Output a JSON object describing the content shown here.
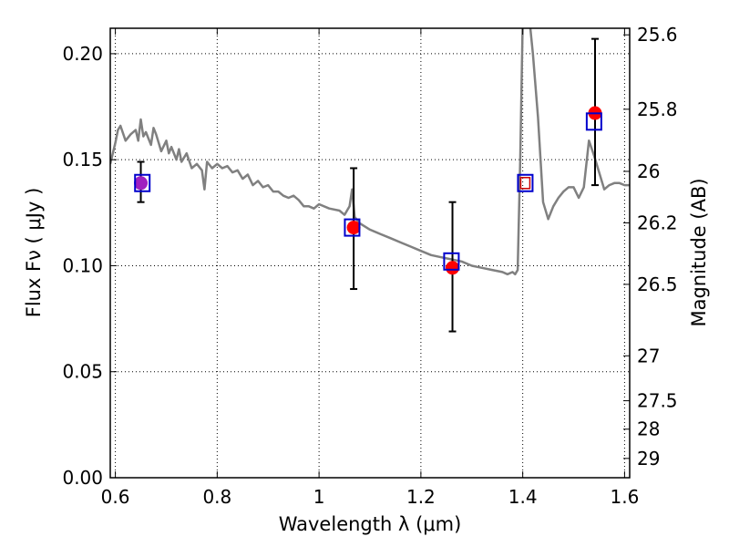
{
  "chart_data": {
    "type": "scatter",
    "title": "",
    "xlabel": "Wavelength  λ (μm)",
    "ylabel": "Flux  Fν  ( μJy )",
    "ylabel_right": "Magnitude (AB)",
    "xlim": [
      0.59,
      1.61
    ],
    "ylim": [
      0.0,
      0.212
    ],
    "grid": true,
    "x_ticks": [
      0.6,
      0.8,
      1.0,
      1.2,
      1.4,
      1.6
    ],
    "x_tick_labels": [
      "0.6",
      "0.8",
      "1",
      "1.2",
      "1.4",
      "1.6"
    ],
    "y_ticks": [
      0.0,
      0.05,
      0.1,
      0.15,
      0.2
    ],
    "y_tick_labels": [
      "0.00",
      "0.05",
      "0.10",
      "0.15",
      "0.20"
    ],
    "right_ticks": [
      {
        "label": "25.6",
        "flux": 0.2089
      },
      {
        "label": "25.8",
        "flux": 0.1738
      },
      {
        "label": "26",
        "flux": 0.1445
      },
      {
        "label": "26.2",
        "flux": 0.1202
      },
      {
        "label": "26.5",
        "flux": 0.0912
      },
      {
        "label": "27",
        "flux": 0.0575
      },
      {
        "label": "27.5",
        "flux": 0.0363
      },
      {
        "label": "28",
        "flux": 0.0229
      },
      {
        "label": "29",
        "flux": 0.0091
      }
    ],
    "series": [
      {
        "type": "line",
        "color": "#808080",
        "x": [
          0.59,
          0.6,
          0.605,
          0.61,
          0.62,
          0.63,
          0.64,
          0.645,
          0.65,
          0.655,
          0.66,
          0.67,
          0.675,
          0.68,
          0.69,
          0.7,
          0.705,
          0.71,
          0.72,
          0.725,
          0.73,
          0.74,
          0.75,
          0.76,
          0.77,
          0.775,
          0.78,
          0.79,
          0.8,
          0.81,
          0.82,
          0.83,
          0.84,
          0.85,
          0.86,
          0.87,
          0.88,
          0.89,
          0.9,
          0.91,
          0.92,
          0.93,
          0.94,
          0.95,
          0.96,
          0.97,
          0.98,
          0.99,
          1.0,
          1.02,
          1.04,
          1.05,
          1.06,
          1.065,
          1.07,
          1.08,
          1.1,
          1.12,
          1.14,
          1.16,
          1.18,
          1.2,
          1.22,
          1.24,
          1.26,
          1.28,
          1.3,
          1.32,
          1.34,
          1.36,
          1.37,
          1.38,
          1.385,
          1.39,
          1.395,
          1.4,
          1.405,
          1.41,
          1.415,
          1.42,
          1.43,
          1.44,
          1.45,
          1.46,
          1.47,
          1.48,
          1.49,
          1.5,
          1.51,
          1.52,
          1.53,
          1.54,
          1.55,
          1.56,
          1.57,
          1.58,
          1.59,
          1.6,
          1.61
        ],
        "y": [
          0.148,
          0.158,
          0.164,
          0.166,
          0.159,
          0.162,
          0.164,
          0.159,
          0.169,
          0.161,
          0.163,
          0.157,
          0.165,
          0.162,
          0.154,
          0.159,
          0.153,
          0.156,
          0.15,
          0.155,
          0.149,
          0.153,
          0.146,
          0.148,
          0.145,
          0.136,
          0.149,
          0.146,
          0.148,
          0.146,
          0.147,
          0.144,
          0.145,
          0.141,
          0.143,
          0.138,
          0.14,
          0.137,
          0.138,
          0.135,
          0.135,
          0.133,
          0.132,
          0.133,
          0.131,
          0.128,
          0.128,
          0.127,
          0.129,
          0.127,
          0.126,
          0.124,
          0.128,
          0.136,
          0.123,
          0.12,
          0.117,
          0.115,
          0.113,
          0.111,
          0.109,
          0.107,
          0.105,
          0.104,
          0.103,
          0.102,
          0.1,
          0.099,
          0.098,
          0.097,
          0.096,
          0.097,
          0.096,
          0.098,
          0.15,
          0.215,
          0.215,
          0.215,
          0.212,
          0.2,
          0.17,
          0.13,
          0.122,
          0.128,
          0.132,
          0.135,
          0.137,
          0.137,
          0.132,
          0.137,
          0.159,
          0.152,
          0.144,
          0.136,
          0.138,
          0.139,
          0.139,
          0.138,
          0.138
        ]
      },
      {
        "name": "",
        "type": "errorbar",
        "color": "#ff0000",
        "x": [
          0.65,
          1.068,
          1.262,
          1.542
        ],
        "y": [
          0.139,
          0.118,
          0.099,
          0.172
        ],
        "yerr_low": [
          0.13,
          0.089,
          0.069,
          0.138
        ],
        "yerr_high": [
          0.149,
          0.146,
          0.13,
          0.207
        ]
      },
      {
        "name": "",
        "type": "scatter",
        "marker": "open-square",
        "color": "#0000cc",
        "x": [
          0.653,
          1.065,
          1.26,
          1.405,
          1.54
        ],
        "y": [
          0.139,
          0.118,
          0.102,
          0.139,
          0.168
        ]
      },
      {
        "name": "",
        "type": "scatter",
        "marker": "open-square",
        "color": "#cc0000",
        "x": [
          1.405
        ],
        "y": [
          0.139
        ]
      }
    ]
  }
}
